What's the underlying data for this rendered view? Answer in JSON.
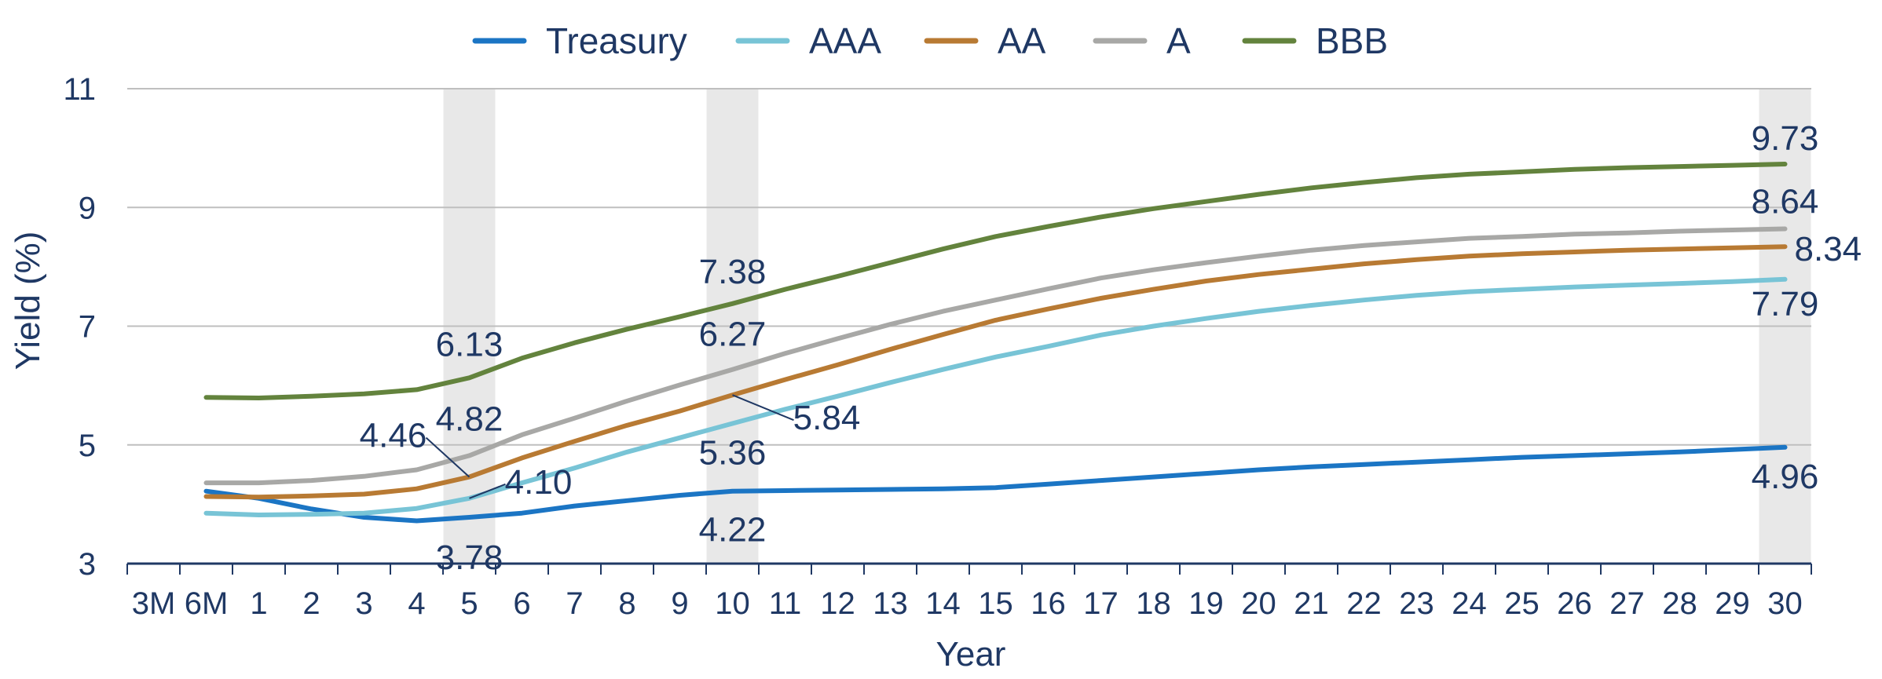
{
  "chart_data": {
    "type": "line",
    "title": "",
    "xlabel": "Year",
    "ylabel": "Yield (%)",
    "ylim": [
      3,
      11
    ],
    "yticks": [
      "3",
      "5",
      "7",
      "9",
      "11"
    ],
    "categories": [
      "3M",
      "6M",
      "1",
      "2",
      "3",
      "4",
      "5",
      "6",
      "7",
      "8",
      "9",
      "10",
      "11",
      "12",
      "13",
      "14",
      "15",
      "16",
      "17",
      "18",
      "19",
      "20",
      "21",
      "22",
      "23",
      "24",
      "25",
      "26",
      "27",
      "28",
      "29",
      "30"
    ],
    "grid": true,
    "legend": "top",
    "highlight_bands": [
      "5",
      "10",
      "30"
    ],
    "band_color": "#e8e8e8",
    "series": [
      {
        "name": "Treasury",
        "color": "#1b75c4",
        "values": [
          null,
          4.22,
          4.1,
          3.92,
          3.78,
          3.72,
          3.78,
          3.85,
          3.97,
          4.06,
          4.15,
          4.22,
          4.23,
          4.24,
          4.25,
          4.26,
          4.28,
          4.34,
          4.4,
          4.46,
          4.52,
          4.58,
          4.63,
          4.67,
          4.71,
          4.75,
          4.79,
          4.82,
          4.85,
          4.88,
          4.92,
          4.96
        ]
      },
      {
        "name": "AAA",
        "color": "#78c4d6",
        "values": [
          null,
          3.85,
          3.82,
          3.83,
          3.85,
          3.93,
          4.1,
          4.36,
          4.61,
          4.88,
          5.12,
          5.36,
          5.6,
          5.82,
          6.05,
          6.27,
          6.48,
          6.66,
          6.85,
          7.0,
          7.13,
          7.25,
          7.35,
          7.44,
          7.52,
          7.58,
          7.62,
          7.66,
          7.69,
          7.72,
          7.75,
          7.79
        ]
      },
      {
        "name": "AA",
        "color": "#b87a33",
        "values": [
          null,
          4.13,
          4.12,
          4.14,
          4.17,
          4.26,
          4.46,
          4.78,
          5.06,
          5.33,
          5.57,
          5.84,
          6.1,
          6.35,
          6.61,
          6.86,
          7.1,
          7.29,
          7.47,
          7.62,
          7.76,
          7.87,
          7.96,
          8.05,
          8.12,
          8.18,
          8.22,
          8.25,
          8.28,
          8.3,
          8.32,
          8.34
        ]
      },
      {
        "name": "A",
        "color": "#a8a8a6",
        "values": [
          null,
          4.36,
          4.36,
          4.4,
          4.47,
          4.58,
          4.82,
          5.17,
          5.45,
          5.74,
          6.01,
          6.27,
          6.54,
          6.79,
          7.03,
          7.25,
          7.44,
          7.63,
          7.81,
          7.95,
          8.07,
          8.18,
          8.28,
          8.36,
          8.42,
          8.48,
          8.51,
          8.55,
          8.57,
          8.6,
          8.62,
          8.64
        ]
      },
      {
        "name": "BBB",
        "color": "#63833d",
        "values": [
          null,
          5.8,
          5.79,
          5.82,
          5.86,
          5.93,
          6.13,
          6.46,
          6.72,
          6.95,
          7.16,
          7.38,
          7.62,
          7.84,
          8.07,
          8.3,
          8.51,
          8.68,
          8.84,
          8.98,
          9.1,
          9.22,
          9.33,
          9.42,
          9.5,
          9.56,
          9.6,
          9.64,
          9.67,
          9.69,
          9.71,
          9.73
        ]
      }
    ],
    "data_labels": [
      {
        "text": "6.13",
        "series": "BBB",
        "x": "5"
      },
      {
        "text": "4.82",
        "series": "A",
        "x": "5"
      },
      {
        "text": "4.46",
        "series": "AA",
        "x": "5"
      },
      {
        "text": "4.10",
        "series": "AAA",
        "x": "5"
      },
      {
        "text": "3.78",
        "series": "Treasury",
        "x": "5"
      },
      {
        "text": "7.38",
        "series": "BBB",
        "x": "10"
      },
      {
        "text": "6.27",
        "series": "A",
        "x": "10"
      },
      {
        "text": "5.84",
        "series": "AA",
        "x": "10"
      },
      {
        "text": "5.36",
        "series": "AAA",
        "x": "10"
      },
      {
        "text": "4.22",
        "series": "Treasury",
        "x": "10"
      },
      {
        "text": "9.73",
        "series": "BBB",
        "x": "30"
      },
      {
        "text": "8.64",
        "series": "A",
        "x": "30"
      },
      {
        "text": "8.34",
        "series": "AA",
        "x": "30"
      },
      {
        "text": "7.79",
        "series": "AAA",
        "x": "30"
      },
      {
        "text": "4.96",
        "series": "Treasury",
        "x": "30"
      }
    ]
  }
}
